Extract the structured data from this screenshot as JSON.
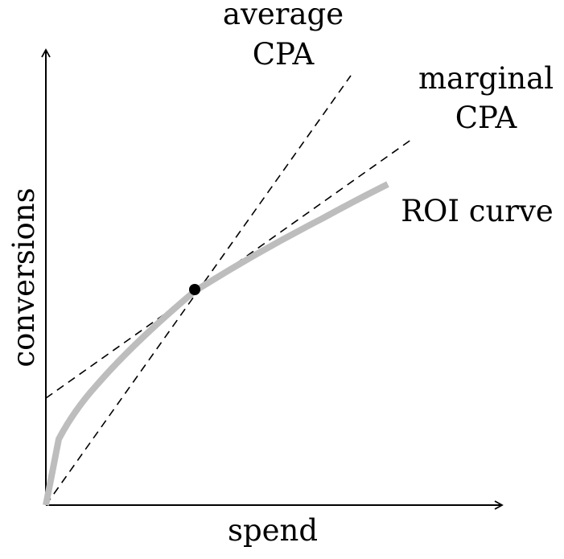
{
  "labels": {
    "x_axis": "spend",
    "y_axis": "conversions",
    "average_line_top": "average",
    "average_line_bottom": "CPA",
    "marginal_line_top": "marginal",
    "marginal_line_bottom": "CPA",
    "curve": "ROI curve"
  }
}
